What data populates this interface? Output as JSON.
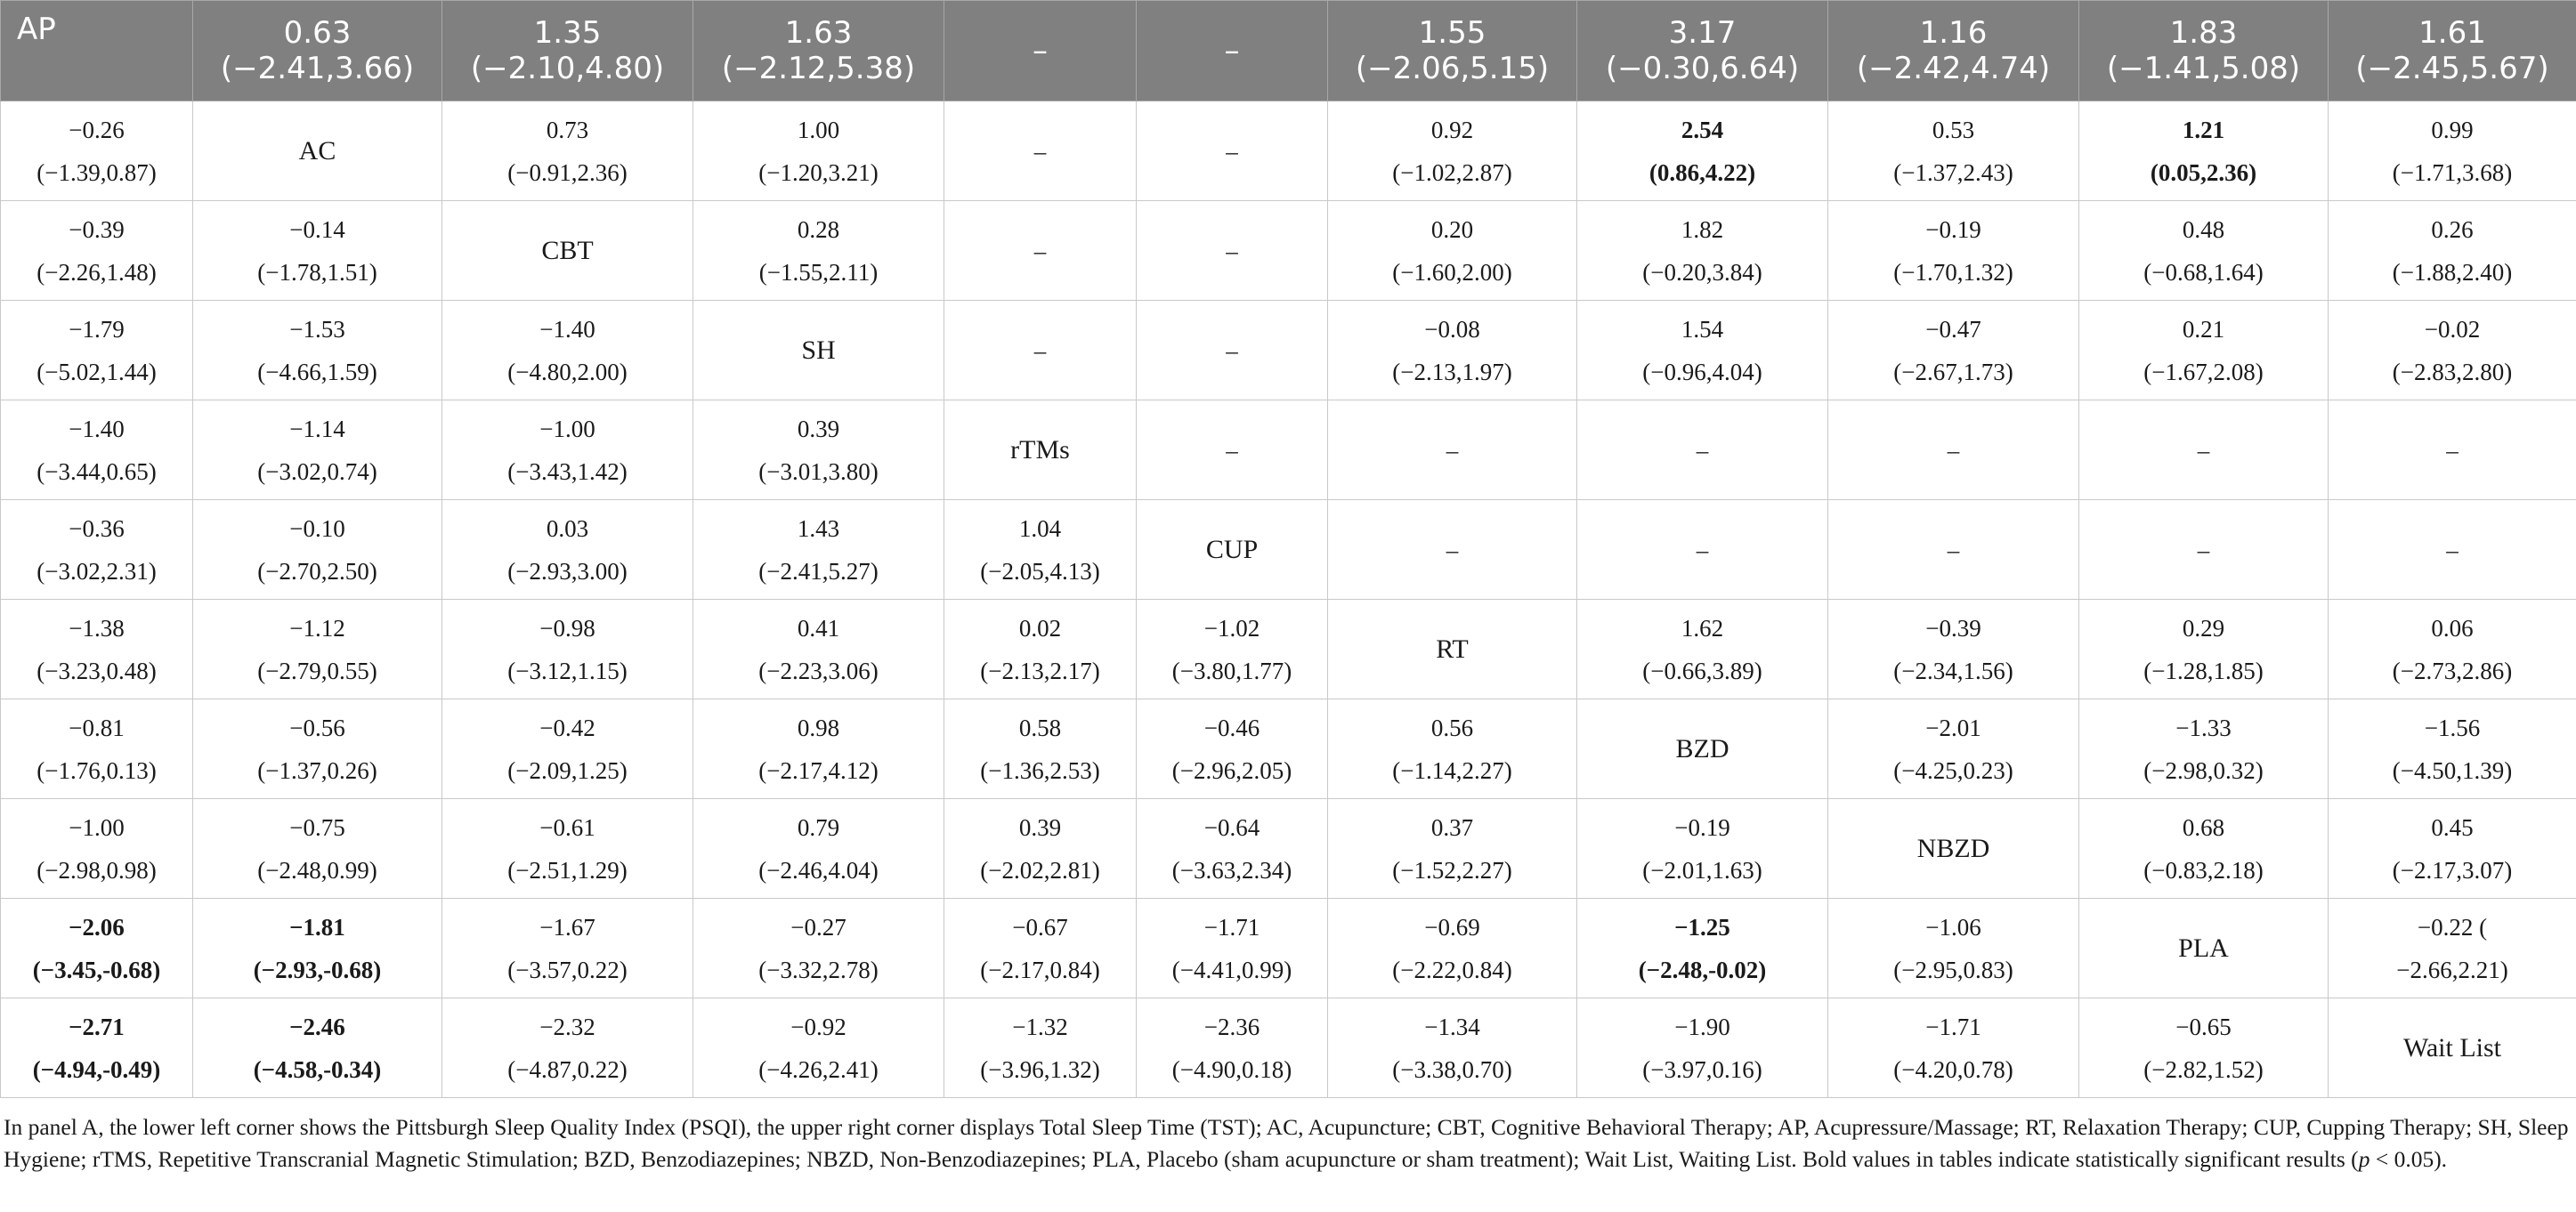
{
  "table": {
    "header": [
      {
        "l1": "AP",
        "l2": ""
      },
      {
        "l1": "0.63",
        "l2": "(−2.41,3.66)"
      },
      {
        "l1": "1.35",
        "l2": "(−2.10,4.80)"
      },
      {
        "l1": "1.63",
        "l2": "(−2.12,5.38)"
      },
      {
        "l1": "–",
        "l2": ""
      },
      {
        "l1": "–",
        "l2": ""
      },
      {
        "l1": "1.55",
        "l2": "(−2.06,5.15)"
      },
      {
        "l1": "3.17",
        "l2": "(−0.30,6.64)"
      },
      {
        "l1": "1.16",
        "l2": "(−2.42,4.74)"
      },
      {
        "l1": "1.83",
        "l2": "(−1.41,5.08)"
      },
      {
        "l1": "1.61",
        "l2": "(−2.45,5.67)"
      }
    ],
    "rows": [
      [
        {
          "l1": "−0.26",
          "l2": "(−1.39,0.87)"
        },
        {
          "l1": "AC",
          "l2": "",
          "diag": true
        },
        {
          "l1": "0.73",
          "l2": "(−0.91,2.36)"
        },
        {
          "l1": "1.00",
          "l2": "(−1.20,3.21)"
        },
        {
          "l1": "–",
          "l2": ""
        },
        {
          "l1": "–",
          "l2": ""
        },
        {
          "l1": "0.92",
          "l2": "(−1.02,2.87)"
        },
        {
          "l1": "2.54",
          "l2": "(0.86,4.22)",
          "bold": true
        },
        {
          "l1": "0.53",
          "l2": "(−1.37,2.43)"
        },
        {
          "l1": "1.21",
          "l2": "(0.05,2.36)",
          "bold": true
        },
        {
          "l1": "0.99",
          "l2": "(−1.71,3.68)"
        }
      ],
      [
        {
          "l1": "−0.39",
          "l2": "(−2.26,1.48)"
        },
        {
          "l1": "−0.14",
          "l2": "(−1.78,1.51)"
        },
        {
          "l1": "CBT",
          "l2": "",
          "diag": true
        },
        {
          "l1": "0.28",
          "l2": "(−1.55,2.11)"
        },
        {
          "l1": "–",
          "l2": ""
        },
        {
          "l1": "–",
          "l2": ""
        },
        {
          "l1": "0.20",
          "l2": "(−1.60,2.00)"
        },
        {
          "l1": "1.82",
          "l2": "(−0.20,3.84)"
        },
        {
          "l1": "−0.19",
          "l2": "(−1.70,1.32)"
        },
        {
          "l1": "0.48",
          "l2": "(−0.68,1.64)"
        },
        {
          "l1": "0.26",
          "l2": "(−1.88,2.40)"
        }
      ],
      [
        {
          "l1": "−1.79",
          "l2": "(−5.02,1.44)"
        },
        {
          "l1": "−1.53",
          "l2": "(−4.66,1.59)"
        },
        {
          "l1": "−1.40",
          "l2": "(−4.80,2.00)"
        },
        {
          "l1": "SH",
          "l2": "",
          "diag": true
        },
        {
          "l1": "–",
          "l2": ""
        },
        {
          "l1": "–",
          "l2": ""
        },
        {
          "l1": "−0.08",
          "l2": "(−2.13,1.97)"
        },
        {
          "l1": "1.54",
          "l2": "(−0.96,4.04)"
        },
        {
          "l1": "−0.47",
          "l2": "(−2.67,1.73)"
        },
        {
          "l1": "0.21",
          "l2": "(−1.67,2.08)"
        },
        {
          "l1": "−0.02",
          "l2": "(−2.83,2.80)"
        }
      ],
      [
        {
          "l1": "−1.40",
          "l2": "(−3.44,0.65)"
        },
        {
          "l1": "−1.14",
          "l2": "(−3.02,0.74)"
        },
        {
          "l1": "−1.00",
          "l2": "(−3.43,1.42)"
        },
        {
          "l1": "0.39",
          "l2": "(−3.01,3.80)"
        },
        {
          "l1": "rTMs",
          "l2": "",
          "diag": true
        },
        {
          "l1": "–",
          "l2": ""
        },
        {
          "l1": "–",
          "l2": ""
        },
        {
          "l1": "–",
          "l2": ""
        },
        {
          "l1": "–",
          "l2": ""
        },
        {
          "l1": "–",
          "l2": ""
        },
        {
          "l1": "–",
          "l2": ""
        }
      ],
      [
        {
          "l1": "−0.36",
          "l2": "(−3.02,2.31)"
        },
        {
          "l1": "−0.10",
          "l2": "(−2.70,2.50)"
        },
        {
          "l1": "0.03",
          "l2": "(−2.93,3.00)"
        },
        {
          "l1": "1.43",
          "l2": "(−2.41,5.27)"
        },
        {
          "l1": "1.04",
          "l2": "(−2.05,4.13)"
        },
        {
          "l1": "CUP",
          "l2": "",
          "diag": true
        },
        {
          "l1": "–",
          "l2": ""
        },
        {
          "l1": "–",
          "l2": ""
        },
        {
          "l1": "–",
          "l2": ""
        },
        {
          "l1": "–",
          "l2": ""
        },
        {
          "l1": "–",
          "l2": ""
        }
      ],
      [
        {
          "l1": "−1.38",
          "l2": "(−3.23,0.48)"
        },
        {
          "l1": "−1.12",
          "l2": "(−2.79,0.55)"
        },
        {
          "l1": "−0.98",
          "l2": "(−3.12,1.15)"
        },
        {
          "l1": "0.41",
          "l2": "(−2.23,3.06)"
        },
        {
          "l1": "0.02",
          "l2": "(−2.13,2.17)"
        },
        {
          "l1": "−1.02",
          "l2": "(−3.80,1.77)"
        },
        {
          "l1": "RT",
          "l2": "",
          "diag": true
        },
        {
          "l1": "1.62",
          "l2": "(−0.66,3.89)"
        },
        {
          "l1": "−0.39",
          "l2": "(−2.34,1.56)"
        },
        {
          "l1": "0.29",
          "l2": "(−1.28,1.85)"
        },
        {
          "l1": "0.06",
          "l2": "(−2.73,2.86)"
        }
      ],
      [
        {
          "l1": "−0.81",
          "l2": "(−1.76,0.13)"
        },
        {
          "l1": "−0.56",
          "l2": "(−1.37,0.26)"
        },
        {
          "l1": "−0.42",
          "l2": "(−2.09,1.25)"
        },
        {
          "l1": "0.98",
          "l2": "(−2.17,4.12)"
        },
        {
          "l1": "0.58",
          "l2": "(−1.36,2.53)"
        },
        {
          "l1": "−0.46",
          "l2": "(−2.96,2.05)"
        },
        {
          "l1": "0.56",
          "l2": "(−1.14,2.27)"
        },
        {
          "l1": "BZD",
          "l2": "",
          "diag": true
        },
        {
          "l1": "−2.01",
          "l2": "(−4.25,0.23)"
        },
        {
          "l1": "−1.33",
          "l2": "(−2.98,0.32)"
        },
        {
          "l1": "−1.56",
          "l2": "(−4.50,1.39)"
        }
      ],
      [
        {
          "l1": "−1.00",
          "l2": "(−2.98,0.98)"
        },
        {
          "l1": "−0.75",
          "l2": "(−2.48,0.99)"
        },
        {
          "l1": "−0.61",
          "l2": "(−2.51,1.29)"
        },
        {
          "l1": "0.79",
          "l2": "(−2.46,4.04)"
        },
        {
          "l1": "0.39",
          "l2": "(−2.02,2.81)"
        },
        {
          "l1": "−0.64",
          "l2": "(−3.63,2.34)"
        },
        {
          "l1": "0.37",
          "l2": "(−1.52,2.27)"
        },
        {
          "l1": "−0.19",
          "l2": "(−2.01,1.63)"
        },
        {
          "l1": "NBZD",
          "l2": "",
          "diag": true
        },
        {
          "l1": "0.68",
          "l2": "(−0.83,2.18)"
        },
        {
          "l1": "0.45",
          "l2": "(−2.17,3.07)"
        }
      ],
      [
        {
          "l1": "−2.06",
          "l2": "(−3.45,-0.68)",
          "bold": true
        },
        {
          "l1": "−1.81",
          "l2": "(−2.93,-0.68)",
          "bold": true
        },
        {
          "l1": "−1.67",
          "l2": "(−3.57,0.22)"
        },
        {
          "l1": "−0.27",
          "l2": "(−3.32,2.78)"
        },
        {
          "l1": "−0.67",
          "l2": "(−2.17,0.84)"
        },
        {
          "l1": "−1.71",
          "l2": "(−4.41,0.99)"
        },
        {
          "l1": "−0.69",
          "l2": "(−2.22,0.84)"
        },
        {
          "l1": "−1.25",
          "l2": "(−2.48,-0.02)",
          "bold": true
        },
        {
          "l1": "−1.06",
          "l2": "(−2.95,0.83)"
        },
        {
          "l1": "PLA",
          "l2": "",
          "diag": true
        },
        {
          "l1": "−0.22 (",
          "l2": "−2.66,2.21)"
        }
      ],
      [
        {
          "l1": "−2.71",
          "l2": "(−4.94,-0.49)",
          "bold": true
        },
        {
          "l1": "−2.46",
          "l2": "(−4.58,-0.34)",
          "bold": true
        },
        {
          "l1": "−2.32",
          "l2": "(−4.87,0.22)"
        },
        {
          "l1": "−0.92",
          "l2": "(−4.26,2.41)"
        },
        {
          "l1": "−1.32",
          "l2": "(−3.96,1.32)"
        },
        {
          "l1": "−2.36",
          "l2": "(−4.90,0.18)"
        },
        {
          "l1": "−1.34",
          "l2": "(−3.38,0.70)"
        },
        {
          "l1": "−1.90",
          "l2": "(−3.97,0.16)"
        },
        {
          "l1": "−1.71",
          "l2": "(−4.20,0.78)"
        },
        {
          "l1": "−0.65",
          "l2": "(−2.82,1.52)"
        },
        {
          "l1": "Wait List",
          "l2": "",
          "diag": true
        }
      ]
    ]
  },
  "caption": {
    "main": "In panel A, the lower left corner shows the Pittsburgh Sleep Quality Index (PSQI), the upper right corner displays Total Sleep Time (TST); AC, Acupuncture; CBT, Cognitive Behavioral Therapy; AP, Acupressure/Massage; RT, Relaxation Therapy; CUP, Cupping Therapy; SH, Sleep Hygiene; rTMS, Repetitive Transcranial Magnetic Stimulation; BZD, Benzodiazepines; NBZD, Non-Benzodiazepines; PLA, Placebo (sham acupuncture or sham treatment); Wait List, Waiting List. Bold values in tables indicate statistically significant results (",
    "p_symbol": "p",
    "p_rest": " < 0.05)."
  }
}
